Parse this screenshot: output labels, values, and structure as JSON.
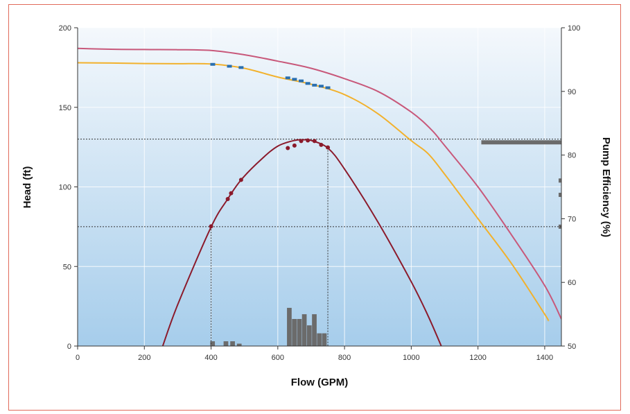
{
  "chart_data": {
    "type": "line",
    "xlabel": "Flow (GPM)",
    "ylabel": "Head (ft)",
    "y2label": "Pump Efficiency (%)",
    "xlim": [
      0,
      1450
    ],
    "ylim": [
      0,
      200
    ],
    "y2lim": [
      50,
      100
    ],
    "xticks": [
      "0",
      "200",
      "400",
      "600",
      "800",
      "1000",
      "1200",
      "1400"
    ],
    "yticks": [
      "0",
      "50",
      "100",
      "150",
      "200"
    ],
    "y2ticks": [
      "50",
      "60",
      "70",
      "80",
      "90",
      "100"
    ],
    "grid": true,
    "colors": {
      "curve_upper": "#c8587a",
      "curve_lower": "#f2b12c",
      "efficiency": "#8b1a2b",
      "histogram": "#6b6b6b",
      "blue_markers": "#2a6fb0",
      "ref_lines": "#333333"
    },
    "series": [
      {
        "axis": "left",
        "color": "#c8587a",
        "x": [
          0,
          100,
          200,
          300,
          400,
          500,
          600,
          700,
          800,
          900,
          1000,
          1060,
          1100,
          1200,
          1300,
          1400,
          1450
        ],
        "values": [
          187,
          186.5,
          186.3,
          186.2,
          185.7,
          183,
          179,
          174.5,
          168,
          160,
          147,
          136,
          126,
          100,
          70,
          38,
          17
        ]
      },
      {
        "axis": "left",
        "color": "#f2b12c",
        "x": [
          0,
          100,
          200,
          300,
          400,
          500,
          600,
          700,
          800,
          900,
          1000,
          1050,
          1100,
          1200,
          1300,
          1400,
          1410
        ],
        "values": [
          178,
          177.8,
          177.5,
          177.4,
          177.2,
          174.5,
          169,
          164.5,
          158,
          146,
          129,
          121,
          108,
          80,
          52,
          20,
          16
        ]
      },
      {
        "axis": "right",
        "color": "#8b1a2b",
        "x": [
          255,
          300,
          400,
          450,
          490,
          550,
          600,
          650,
          680,
          700,
          750,
          800,
          900,
          1000,
          1050,
          1090
        ],
        "values": [
          50,
          56.5,
          68.7,
          73.1,
          76.1,
          79.3,
          81.4,
          82.3,
          82.4,
          82.3,
          81.1,
          77.8,
          69.5,
          60.1,
          54.8,
          50
        ]
      }
    ],
    "reference_lines": {
      "head_ft": [
        130,
        75
      ],
      "flow_gpm": [
        400,
        750
      ]
    },
    "histogram_bottom": {
      "x": [
        405,
        445,
        465,
        485,
        635,
        650,
        665,
        680,
        695,
        710,
        725,
        740
      ],
      "heights_ft": [
        3,
        3,
        3,
        1.5,
        24,
        17,
        17,
        20,
        13,
        20,
        8,
        8
      ]
    },
    "histogram_right": {
      "rows_ft": [
        128,
        104,
        95,
        75
      ]
    },
    "blue_points": {
      "x": [
        405,
        455,
        490,
        630,
        650,
        670,
        690,
        710,
        730,
        750
      ],
      "values": [
        177,
        175.8,
        175,
        168.5,
        167.6,
        166.6,
        165,
        163.9,
        163.3,
        162.3
      ]
    },
    "efficiency_points": {
      "x": [
        400,
        450,
        460,
        490,
        630,
        650,
        670,
        690,
        710,
        730,
        750
      ],
      "values": [
        68.8,
        73.1,
        74,
        76.1,
        81.1,
        81.5,
        82.2,
        82.3,
        82.2,
        81.6,
        81.2
      ]
    }
  }
}
